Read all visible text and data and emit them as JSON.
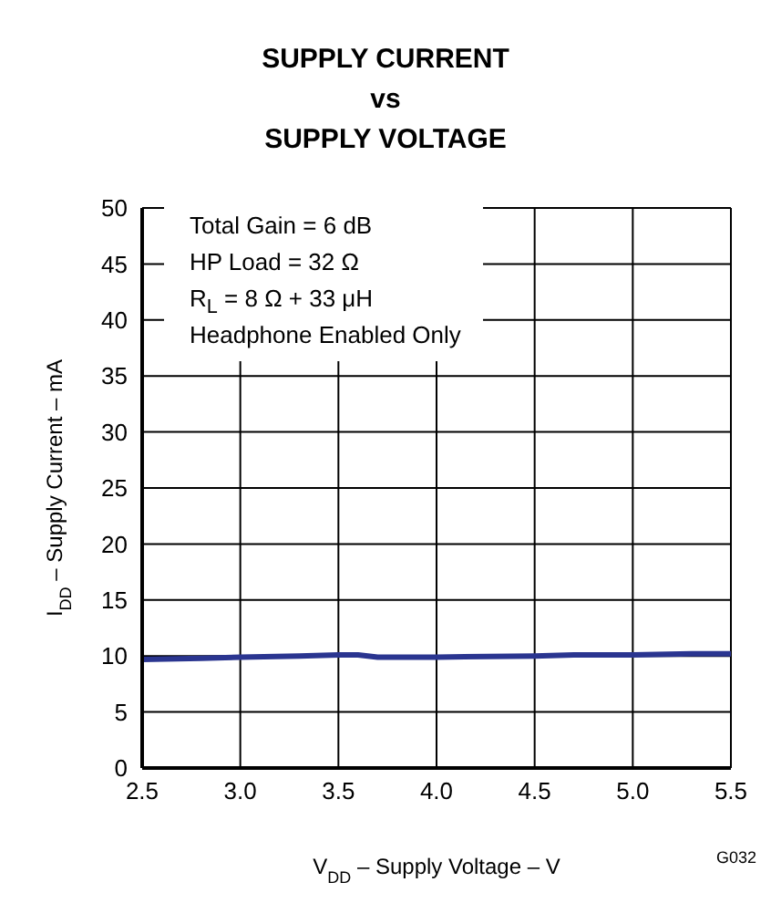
{
  "chart_data": {
    "type": "line",
    "title": "SUPPLY CURRENT\nvs\nSUPPLY VOLTAGE",
    "xlabel": "V$_{DD}$ – Supply Voltage – V",
    "ylabel": "I$_{DD}$ – Supply Current – mA",
    "annotations": [
      "Total Gain = 6 dB\nHP Load = 32 Ω\nR$_{L}$ = 8 Ω + 33 μH\nHeadphone Enabled Only",
      "G032"
    ],
    "x": [
      2.5,
      2.8,
      3.0,
      3.3,
      3.5,
      3.6,
      3.7,
      4.0,
      4.5,
      4.7,
      5.0,
      5.3,
      5.5
    ],
    "series": [
      {
        "color": "#2a3590",
        "values": [
          9.7,
          9.8,
          9.9,
          10.0,
          10.1,
          10.1,
          9.9,
          9.9,
          10.0,
          10.1,
          10.1,
          10.2,
          10.2
        ]
      }
    ],
    "xlim": [
      2.5,
      5.5
    ],
    "xticks": [
      2.5,
      {
        "value": 3,
        "label": "3.0"
      },
      3.5,
      {
        "value": 4,
        "label": "4.0"
      },
      4.5,
      {
        "value": 5,
        "label": "5.0"
      },
      5.5
    ],
    "ylim": [
      0,
      50
    ],
    "yticks": [
      0,
      5,
      10,
      15,
      20,
      25,
      30,
      35,
      40,
      45,
      50
    ],
    "grid": true,
    "marker": "none",
    "line_style": "solid"
  }
}
